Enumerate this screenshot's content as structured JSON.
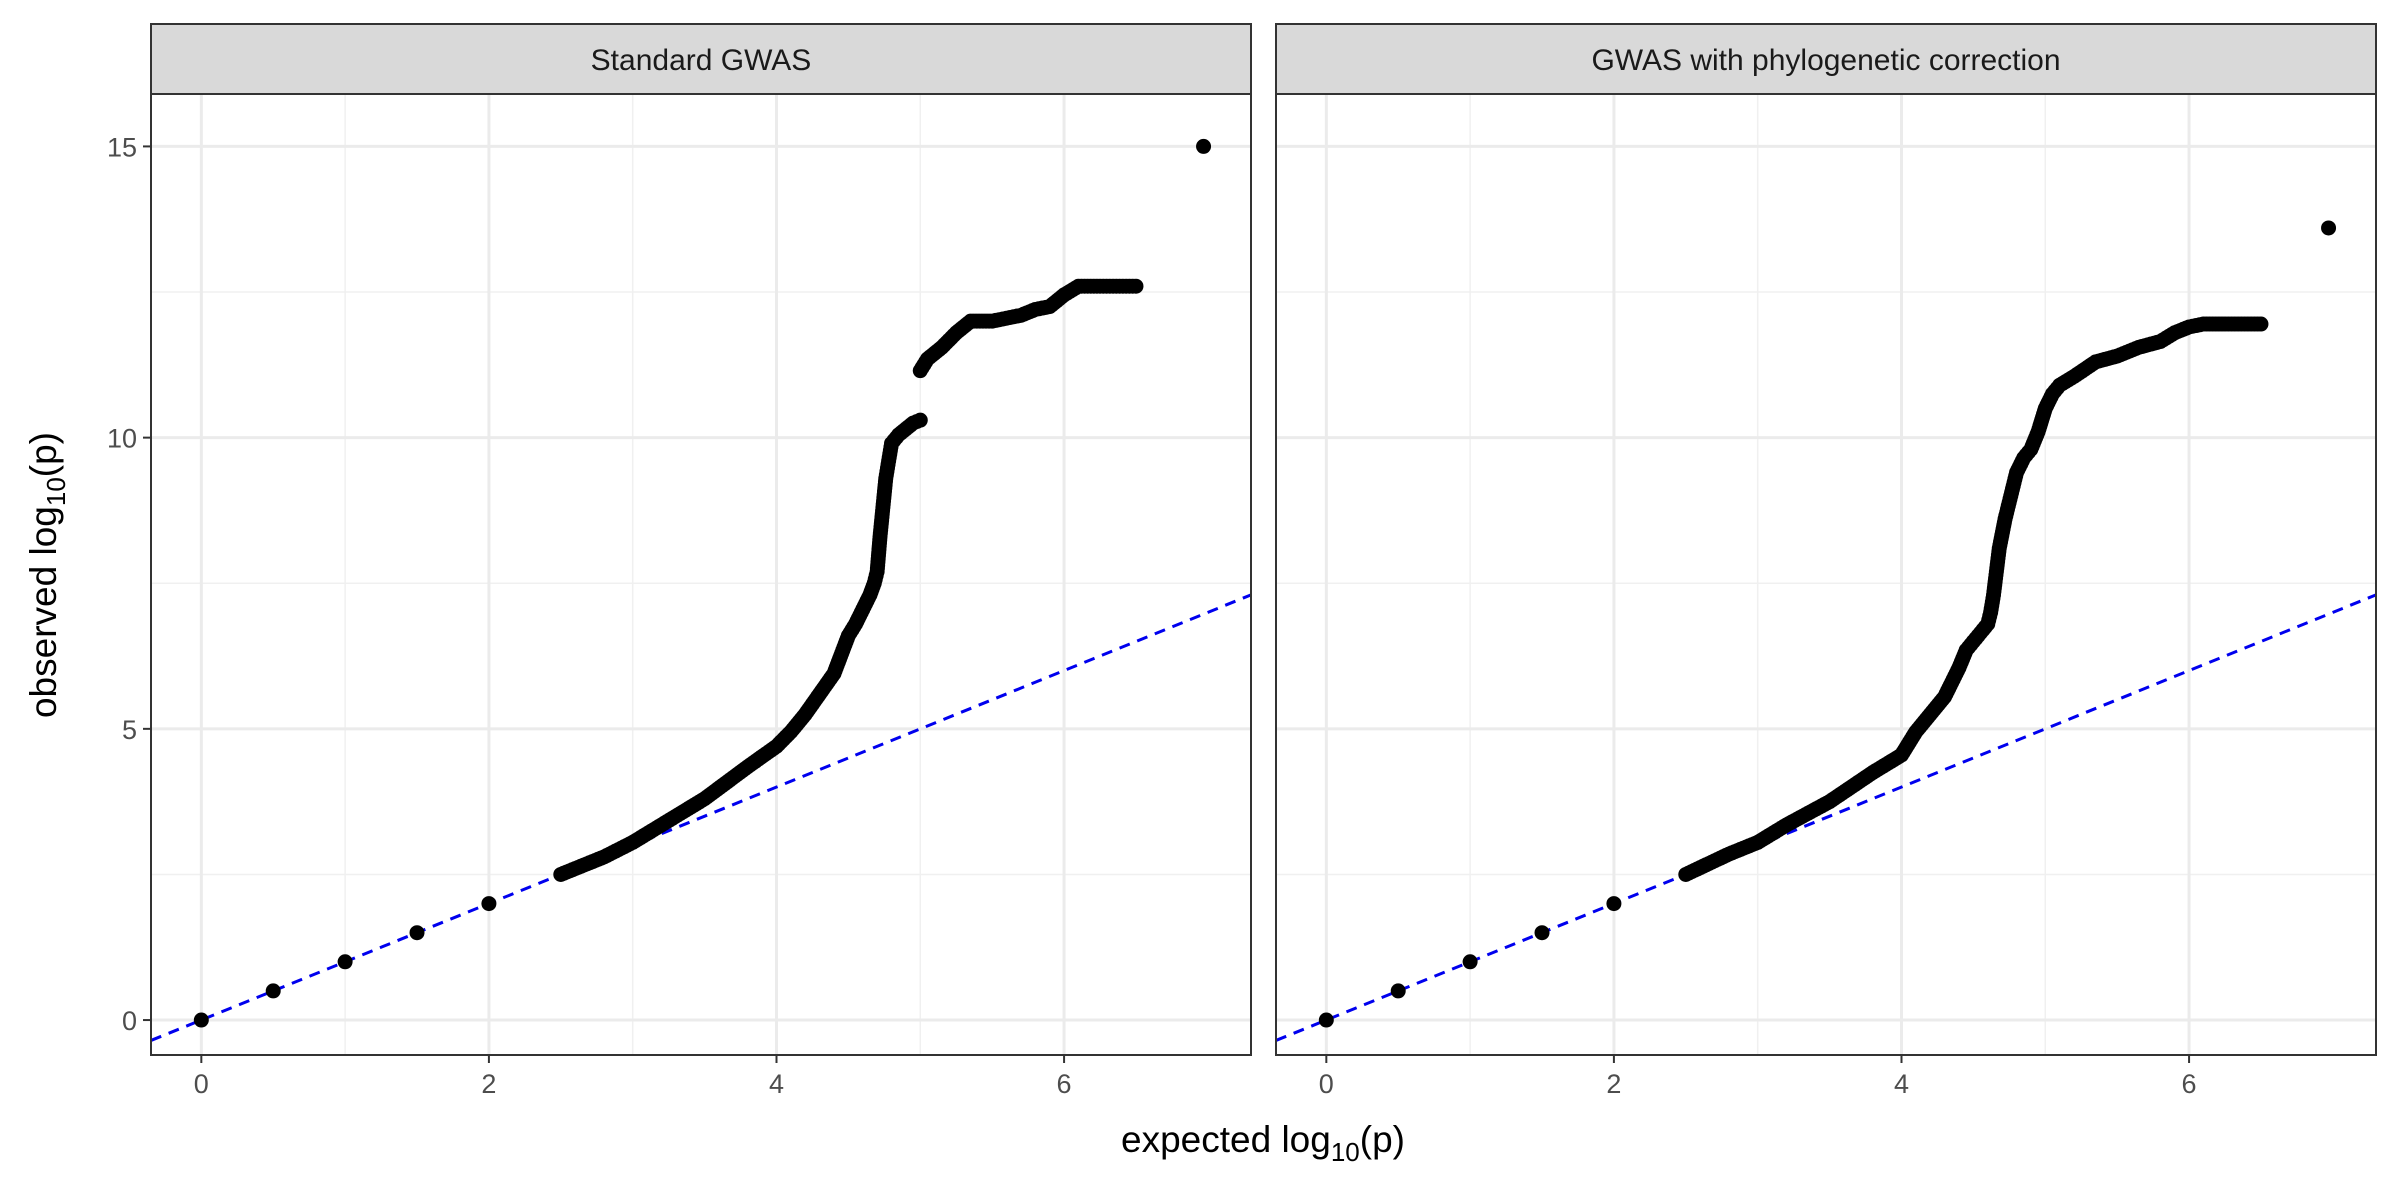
{
  "chart_data": {
    "type": "scatter",
    "xlabel": {
      "prefix": "expected log",
      "sub": "10",
      "suffix": "(p)"
    },
    "ylabel": {
      "prefix": "observed log",
      "sub": "10",
      "suffix": "(p)"
    },
    "xlim": [
      -0.35,
      7.3
    ],
    "ylim": [
      -0.6,
      15.9
    ],
    "x_ticks": [
      0,
      2,
      4,
      6
    ],
    "y_ticks": [
      0,
      5,
      10,
      15
    ],
    "grid": true,
    "reference_line": {
      "slope": 1,
      "intercept": 0,
      "color": "#0000ee",
      "style": "dashed"
    },
    "point_color": "#000000",
    "panels": [
      {
        "title": "Standard GWAS",
        "x": [
          0,
          0.5,
          1,
          1.5,
          2,
          2.5,
          2.8,
          3.0,
          3.2,
          3.5,
          3.8,
          4.0,
          4.1,
          4.2,
          4.3,
          4.4,
          4.5,
          4.55,
          4.6,
          4.65,
          4.68,
          4.7,
          4.72,
          4.74,
          4.76,
          4.78,
          4.8,
          4.85,
          4.9,
          4.95,
          5.0,
          5.0,
          5.05,
          5.15,
          5.25,
          5.35,
          5.5,
          5.6,
          5.7,
          5.8,
          5.9,
          6.0,
          6.1,
          6.25,
          6.5,
          6.97
        ],
        "y": [
          0,
          0.5,
          1.0,
          1.5,
          2.0,
          2.5,
          2.8,
          3.05,
          3.35,
          3.8,
          4.35,
          4.7,
          4.95,
          5.25,
          5.6,
          5.95,
          6.6,
          6.8,
          7.05,
          7.3,
          7.5,
          7.7,
          8.3,
          8.8,
          9.3,
          9.6,
          9.9,
          10.05,
          10.15,
          10.25,
          10.3,
          11.15,
          11.35,
          11.55,
          11.8,
          12.0,
          12.0,
          12.05,
          12.1,
          12.2,
          12.25,
          12.45,
          12.6,
          12.6,
          12.6,
          15.0
        ]
      },
      {
        "title": "GWAS with phylogenetic correction",
        "x": [
          0,
          0.5,
          1,
          1.5,
          2,
          2.5,
          2.8,
          3.0,
          3.2,
          3.5,
          3.8,
          4.0,
          4.1,
          4.2,
          4.3,
          4.4,
          4.45,
          4.5,
          4.55,
          4.6,
          4.62,
          4.64,
          4.66,
          4.68,
          4.72,
          4.76,
          4.8,
          4.85,
          4.9,
          4.95,
          5.0,
          5.05,
          5.1,
          5.2,
          5.35,
          5.5,
          5.65,
          5.8,
          5.9,
          6.0,
          6.1,
          6.25,
          6.5,
          6.97
        ],
        "y": [
          0,
          0.5,
          1.0,
          1.5,
          2.0,
          2.5,
          2.85,
          3.05,
          3.35,
          3.75,
          4.25,
          4.55,
          4.95,
          5.25,
          5.55,
          6.05,
          6.35,
          6.5,
          6.65,
          6.8,
          7.0,
          7.3,
          7.7,
          8.1,
          8.6,
          9.0,
          9.4,
          9.65,
          9.8,
          10.1,
          10.5,
          10.75,
          10.9,
          11.05,
          11.3,
          11.4,
          11.55,
          11.65,
          11.8,
          11.9,
          11.95,
          11.95,
          11.95,
          13.6
        ]
      }
    ]
  }
}
